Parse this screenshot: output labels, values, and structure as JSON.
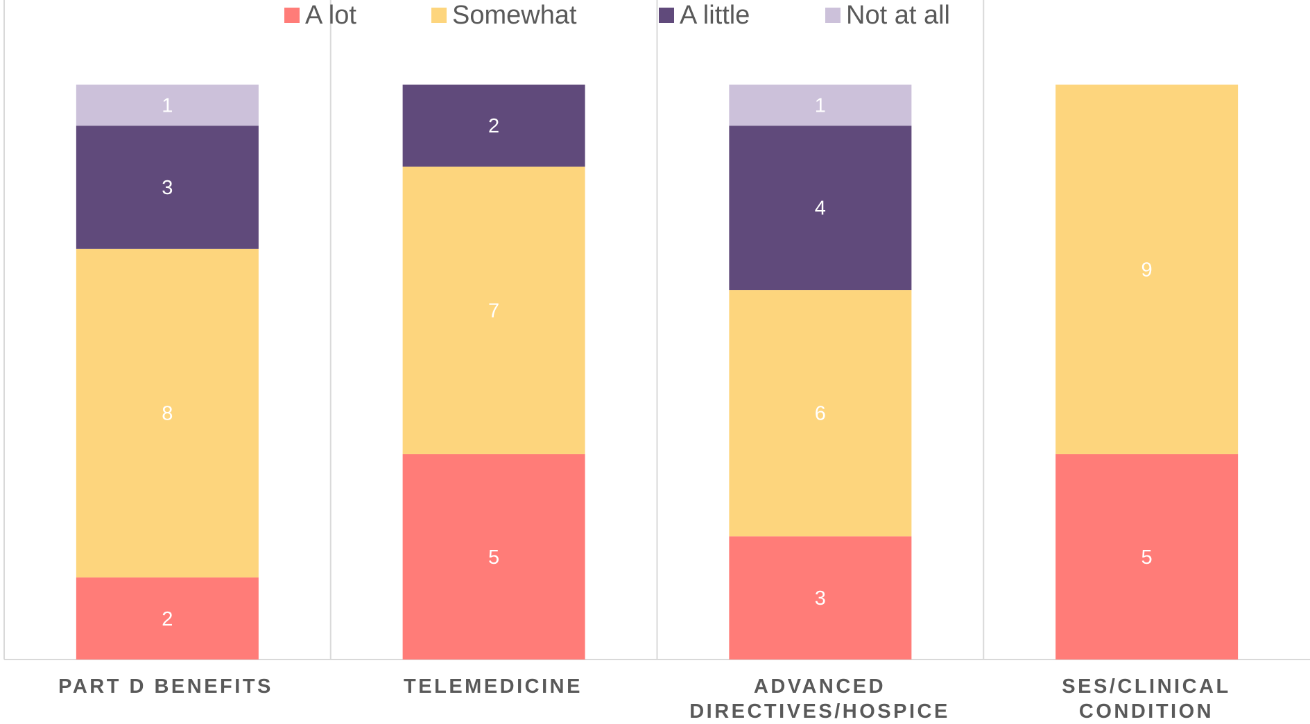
{
  "chart_data": {
    "type": "bar",
    "stacked": true,
    "categories": [
      "PART D BENEFITS",
      "TELEMEDICINE",
      "ADVANCED DIRECTIVES/HOSPICE",
      "SES/CLINICAL CONDITION"
    ],
    "series": [
      {
        "name": "A lot",
        "color": "#FF7C78",
        "label_color": "#ffffff",
        "values": [
          2,
          5,
          3,
          5
        ]
      },
      {
        "name": "Somewhat",
        "color": "#FDD57D",
        "label_color": "#ffffff",
        "values": [
          8,
          7,
          6,
          9
        ]
      },
      {
        "name": "A little",
        "color": "#604A7B",
        "label_color": "#ffffff",
        "values": [
          3,
          2,
          4,
          0
        ]
      },
      {
        "name": "Not at all",
        "color": "#CCC1DA",
        "label_color": "#ffffff",
        "values": [
          1,
          0,
          1,
          0
        ]
      }
    ],
    "ylim": [
      0,
      14
    ],
    "legend": "top",
    "grid": false,
    "category_separators": true
  },
  "colors": {
    "text": "#595959",
    "axis": "#D9D9D9"
  }
}
